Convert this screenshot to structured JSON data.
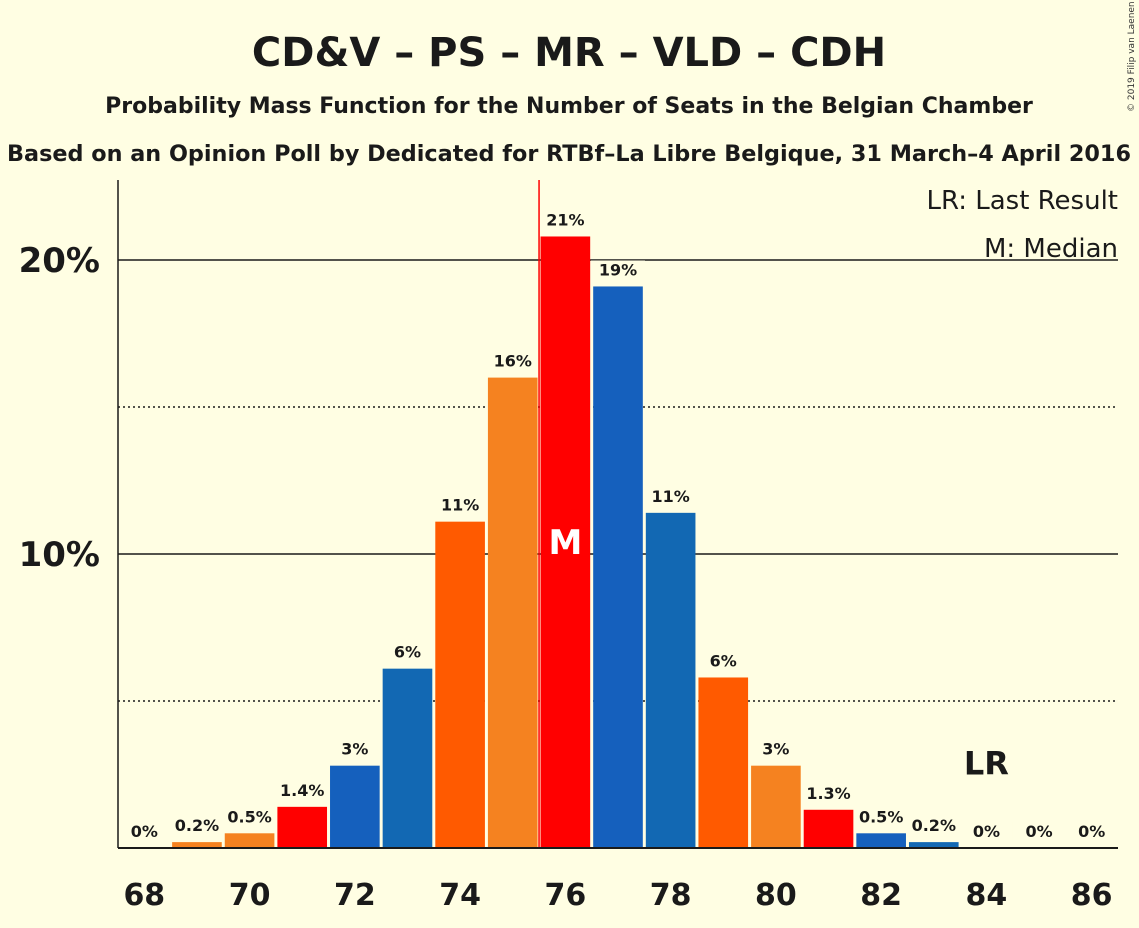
{
  "chart_data": {
    "type": "bar",
    "title": "CD&V – PS – MR – VLD – CDH",
    "subtitle": "Probability Mass Function for the Number of Seats in the Belgian Chamber",
    "subtitle2": "Based on an Opinion Poll by Dedicated for RTBf–La Libre Belgique, 31 March–4 April 2016",
    "copyright": "© 2019 Filip van Laenen",
    "legend": {
      "last_result": "LR: Last Result",
      "median": "M: Median",
      "placement": "top-right"
    },
    "x": [
      68,
      69,
      70,
      71,
      72,
      73,
      74,
      75,
      76,
      77,
      78,
      79,
      80,
      81,
      82,
      83,
      84,
      85,
      86
    ],
    "values": [
      0,
      0.2,
      0.5,
      1.4,
      2.8,
      6.1,
      11.1,
      16.0,
      20.8,
      19.1,
      11.4,
      5.8,
      2.8,
      1.3,
      0.5,
      0.2,
      0,
      0,
      0
    ],
    "labels": [
      "0%",
      "0.2%",
      "0.5%",
      "1.4%",
      "3%",
      "6%",
      "11%",
      "16%",
      "21%",
      "19%",
      "11%",
      "6%",
      "3%",
      "1.3%",
      "0.5%",
      "0.2%",
      "0%",
      "0%",
      "0%"
    ],
    "colors": [
      "#F58220",
      "#F58220",
      "#F58220",
      "#FF0000",
      "#1560BD",
      "#1268B3",
      "#FF5A00",
      "#F58220",
      "#FF0000",
      "#1560BD",
      "#1268B3",
      "#FF5A00",
      "#F58220",
      "#FF0000",
      "#1560BD",
      "#1268B3",
      "#FF5A00",
      "#F58220",
      "#FF0000"
    ],
    "xticks": [
      68,
      70,
      72,
      74,
      76,
      78,
      80,
      82,
      84,
      86
    ],
    "yticks": [
      {
        "value": 10,
        "label": "10%"
      },
      {
        "value": 20,
        "label": "20%"
      }
    ],
    "minor_gridlines": [
      5,
      15
    ],
    "ylim": [
      0,
      22.6
    ],
    "xlim": [
      67.5,
      86.5
    ],
    "median": {
      "x": 76,
      "label": "M"
    },
    "last_result": {
      "x": 84,
      "label": "LR"
    }
  }
}
